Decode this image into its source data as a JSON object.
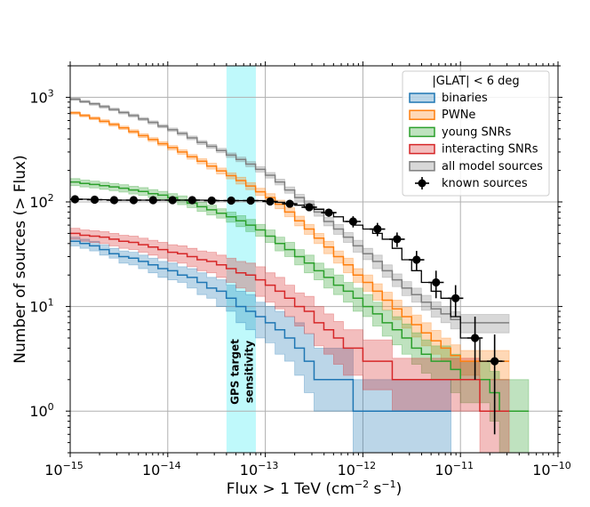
{
  "chart_data": {
    "type": "line",
    "xscale": "log",
    "yscale": "log",
    "xlabel": "Flux > 1 TeV (cm",
    "xlabel_parts": {
      "main": "Flux > 1 TeV (cm",
      "sup1": "−2",
      "mid": " s",
      "sup2": "−1",
      "end": ")"
    },
    "ylabel": "Number of sources (> Flux)",
    "xlim": [
      1e-15,
      1e-10
    ],
    "ylim": [
      0.4,
      2000
    ],
    "x_ticks": [
      {
        "value": 1e-15,
        "base": "10",
        "exp": "−15"
      },
      {
        "value": 1e-14,
        "base": "10",
        "exp": "−14"
      },
      {
        "value": 1e-13,
        "base": "10",
        "exp": "−13"
      },
      {
        "value": 1e-12,
        "base": "10",
        "exp": "−12"
      },
      {
        "value": 1e-11,
        "base": "10",
        "exp": "−11"
      },
      {
        "value": 1e-10,
        "base": "10",
        "exp": "−10"
      }
    ],
    "y_ticks": [
      {
        "value": 1,
        "base": "10",
        "exp": "0"
      },
      {
        "value": 10,
        "base": "10",
        "exp": "1"
      },
      {
        "value": 100,
        "base": "10",
        "exp": "2"
      },
      {
        "value": 1000,
        "base": "10",
        "exp": "3"
      }
    ],
    "grid": true,
    "legend_title": "|GLAT| < 6 deg",
    "legend_position": "upper right",
    "sensitivity_band": {
      "x_range": [
        4e-14,
        8e-14
      ],
      "label_line1": "GPS target",
      "label_line2": "sensitivity",
      "color": "#00e8f0"
    },
    "series": [
      {
        "name": "binaries",
        "color": "#1f77b4",
        "x": [
          1e-15,
          1.26e-15,
          1.58e-15,
          2e-15,
          2.51e-15,
          3.16e-15,
          3.98e-15,
          5.01e-15,
          6.31e-15,
          7.94e-15,
          1e-14,
          1.26e-14,
          1.58e-14,
          2e-14,
          2.51e-14,
          3.16e-14,
          3.98e-14,
          5.01e-14,
          6.31e-14,
          7.94e-14,
          1e-13,
          1.26e-13,
          1.58e-13,
          2e-13,
          2.51e-13,
          3.16e-13,
          3.98e-13,
          5.01e-13,
          6.31e-13,
          7.94e-13,
          1e-12,
          1.26e-12,
          1.58e-12,
          2e-12,
          2.51e-12,
          3.16e-12,
          3.98e-12,
          5.01e-12,
          6.31e-12
        ],
        "y": [
          42,
          40,
          38,
          35,
          32,
          30,
          29,
          27,
          25,
          23,
          22,
          20,
          19,
          17,
          15,
          14,
          12,
          10,
          9,
          8,
          7,
          6,
          5,
          4,
          3,
          2,
          2,
          2,
          2,
          1,
          1,
          1,
          1,
          1,
          1,
          1,
          1,
          1,
          1
        ],
        "low": [
          38,
          36,
          34,
          31,
          29,
          26,
          25,
          23,
          21,
          19,
          18,
          17,
          15,
          13,
          12,
          10,
          9,
          7,
          6,
          5,
          4.5,
          3.5,
          3,
          2.2,
          1.5,
          1,
          1,
          1,
          1,
          0.4,
          0.4,
          0.4,
          0.4,
          0.4,
          0.4,
          0.4,
          0.4,
          0.4,
          0.4
        ],
        "high": [
          46,
          44,
          42,
          39,
          36,
          34,
          33,
          31,
          29,
          27,
          26,
          24,
          23,
          21,
          19,
          18,
          16,
          14,
          13,
          11,
          10,
          9,
          8,
          7,
          5.5,
          4,
          4,
          4,
          4,
          2,
          2,
          2,
          2,
          2,
          2,
          2,
          2,
          2,
          2
        ],
        "x_end": 8e-12
      },
      {
        "name": "PWNe",
        "color": "#ff7f0e",
        "x": [
          1e-15,
          1.26e-15,
          1.58e-15,
          2e-15,
          2.51e-15,
          3.16e-15,
          3.98e-15,
          5.01e-15,
          6.31e-15,
          7.94e-15,
          1e-14,
          1.26e-14,
          1.58e-14,
          2e-14,
          2.51e-14,
          3.16e-14,
          3.98e-14,
          5.01e-14,
          6.31e-14,
          7.94e-14,
          1e-13,
          1.26e-13,
          1.58e-13,
          2e-13,
          2.51e-13,
          3.16e-13,
          3.98e-13,
          5.01e-13,
          6.31e-13,
          7.94e-13,
          1e-12,
          1.26e-12,
          1.58e-12,
          2e-12,
          2.51e-12,
          3.16e-12,
          3.98e-12,
          5.01e-12,
          6.31e-12,
          7.94e-12,
          1e-11,
          1.26e-11,
          1.58e-11,
          2e-11,
          2.51e-11
        ],
        "y": [
          710,
          670,
          630,
          590,
          550,
          510,
          470,
          430,
          395,
          360,
          330,
          300,
          270,
          245,
          220,
          198,
          178,
          160,
          142,
          125,
          110,
          95,
          80,
          66,
          55,
          45,
          37,
          30,
          25,
          20,
          17,
          14,
          11.5,
          9.5,
          8,
          6.7,
          5.6,
          4.7,
          4,
          3.4,
          3,
          3,
          3,
          3,
          3
        ],
        "low": [
          690,
          650,
          610,
          570,
          530,
          492,
          452,
          413,
          378,
          344,
          314,
          285,
          256,
          231,
          206,
          185,
          166,
          148,
          131,
          115,
          100,
          86,
          72,
          59,
          49,
          40,
          32,
          26,
          21,
          17,
          14,
          11.5,
          9.3,
          7.5,
          6.2,
          5.1,
          4.2,
          3.5,
          3,
          2.5,
          2.2,
          2.2,
          2,
          2,
          2
        ],
        "high": [
          730,
          690,
          650,
          610,
          570,
          530,
          490,
          448,
          412,
          377,
          346,
          315,
          284,
          259,
          234,
          211,
          190,
          172,
          153,
          135,
          120,
          104,
          88,
          73,
          61,
          50,
          42,
          34,
          29,
          23,
          20,
          16.5,
          13.7,
          11.5,
          9.8,
          8.3,
          7,
          5.9,
          5,
          4.3,
          3.8,
          3.8,
          3.8,
          3.8,
          3.8
        ],
        "x_end": 3.16e-11
      },
      {
        "name": "young SNRs",
        "color": "#2ca02c",
        "x": [
          1e-15,
          1.26e-15,
          1.58e-15,
          2e-15,
          2.51e-15,
          3.16e-15,
          3.98e-15,
          5.01e-15,
          6.31e-15,
          7.94e-15,
          1e-14,
          1.26e-14,
          1.58e-14,
          2e-14,
          2.51e-14,
          3.16e-14,
          3.98e-14,
          5.01e-14,
          6.31e-14,
          7.94e-14,
          1e-13,
          1.26e-13,
          1.58e-13,
          2e-13,
          2.51e-13,
          3.16e-13,
          3.98e-13,
          5.01e-13,
          6.31e-13,
          7.94e-13,
          1e-12,
          1.26e-12,
          1.58e-12,
          2e-12,
          2.51e-12,
          3.16e-12,
          3.98e-12,
          5.01e-12,
          6.31e-12,
          7.94e-12,
          1e-11,
          1.26e-11,
          1.58e-11,
          2e-11,
          2.51e-11,
          3.16e-11,
          3.98e-11
        ],
        "y": [
          155,
          150,
          147,
          143,
          139,
          135,
          130,
          126,
          120,
          116,
          110,
          104,
          97,
          90,
          84,
          78,
          72,
          66,
          60,
          54,
          47,
          40,
          35,
          30,
          26,
          22,
          19,
          16,
          14,
          12,
          10,
          8.5,
          7,
          6,
          5,
          4,
          3.5,
          3,
          3,
          2.5,
          2,
          2,
          2,
          1.5,
          1,
          1,
          1
        ],
        "low": [
          143,
          139,
          136,
          132,
          128,
          124,
          119,
          115,
          110,
          106,
          100,
          94,
          88,
          81,
          75,
          70,
          64,
          58,
          52,
          47,
          41,
          34,
          30,
          25,
          21,
          18,
          15,
          13,
          11,
          9,
          8,
          6.5,
          5.2,
          4.3,
          3.5,
          2.8,
          2.3,
          2,
          2,
          1.5,
          1.2,
          1.2,
          1.2,
          0.8,
          0.4,
          0.4,
          0.4
        ],
        "high": [
          167,
          162,
          158,
          154,
          150,
          146,
          141,
          137,
          131,
          126,
          120,
          114,
          106,
          99,
          93,
          86,
          80,
          74,
          68,
          61,
          54,
          46,
          41,
          35,
          31,
          26,
          23,
          20,
          17,
          15,
          13,
          11,
          9.2,
          8,
          6.8,
          5.6,
          4.8,
          4.2,
          4.2,
          3.5,
          3,
          3,
          3,
          2.4,
          2,
          2,
          2
        ],
        "x_end": 5e-11
      },
      {
        "name": "interacting SNRs",
        "color": "#d62728",
        "x": [
          1e-15,
          1.26e-15,
          1.58e-15,
          2e-15,
          2.51e-15,
          3.16e-15,
          3.98e-15,
          5.01e-15,
          6.31e-15,
          7.94e-15,
          1e-14,
          1.26e-14,
          1.58e-14,
          2e-14,
          2.51e-14,
          3.16e-14,
          3.98e-14,
          5.01e-14,
          6.31e-14,
          7.94e-14,
          1e-13,
          1.26e-13,
          1.58e-13,
          2e-13,
          2.51e-13,
          3.16e-13,
          3.98e-13,
          5.01e-13,
          6.31e-13,
          7.94e-13,
          1e-12,
          1.26e-12,
          1.58e-12,
          2e-12,
          2.51e-12,
          3.16e-12,
          3.98e-12,
          5.01e-12,
          6.31e-12,
          7.94e-12,
          1e-11,
          1.26e-11,
          1.58e-11,
          2e-11,
          2.51e-11
        ],
        "y": [
          50,
          48,
          47,
          46,
          44,
          42,
          41,
          39,
          37,
          35,
          33,
          32,
          30,
          28,
          27,
          25,
          23,
          21,
          20,
          18,
          16,
          14,
          12,
          10,
          9,
          7,
          6,
          5,
          4,
          4,
          3,
          3,
          3,
          2,
          2,
          2,
          2,
          2,
          2,
          2,
          2,
          2,
          1,
          1,
          1
        ],
        "low": [
          44,
          42,
          41,
          40,
          38,
          36,
          35,
          33,
          31,
          29,
          27,
          26,
          24,
          22,
          21,
          19,
          17,
          15,
          14,
          12.5,
          11,
          9.5,
          8,
          6.5,
          5.5,
          4.2,
          3.5,
          2.8,
          2.2,
          2.2,
          1.6,
          1.6,
          1.6,
          1,
          1,
          1,
          1,
          1,
          1,
          1,
          1,
          1,
          0.4,
          0.4,
          0.4
        ],
        "high": [
          56,
          54,
          53,
          52,
          50,
          48,
          47,
          45,
          43,
          41,
          39,
          38,
          36,
          34,
          33,
          31,
          29,
          27,
          26,
          24,
          21,
          19,
          16,
          13.5,
          12.5,
          10,
          8.5,
          7.2,
          6,
          6,
          4.8,
          4.8,
          4.8,
          3.2,
          3.2,
          3.2,
          3.2,
          3.2,
          3.2,
          3.2,
          3.2,
          3.2,
          2,
          2,
          2
        ],
        "x_end": 3.16e-11
      },
      {
        "name": "all model sources",
        "color": "#7f7f7f",
        "x": [
          1e-15,
          1.26e-15,
          1.58e-15,
          2e-15,
          2.51e-15,
          3.16e-15,
          3.98e-15,
          5.01e-15,
          6.31e-15,
          7.94e-15,
          1e-14,
          1.26e-14,
          1.58e-14,
          2e-14,
          2.51e-14,
          3.16e-14,
          3.98e-14,
          5.01e-14,
          6.31e-14,
          7.94e-14,
          1e-13,
          1.26e-13,
          1.58e-13,
          2e-13,
          2.51e-13,
          3.16e-13,
          3.98e-13,
          5.01e-13,
          6.31e-13,
          7.94e-13,
          1e-12,
          1.26e-12,
          1.58e-12,
          2e-12,
          2.51e-12,
          3.16e-12,
          3.98e-12,
          5.01e-12,
          6.31e-12,
          7.94e-12,
          1e-11,
          1.26e-11,
          1.58e-11,
          2e-11,
          2.51e-11
        ],
        "y": [
          960,
          910,
          865,
          815,
          765,
          715,
          670,
          620,
          575,
          530,
          490,
          450,
          410,
          370,
          340,
          310,
          280,
          255,
          230,
          205,
          180,
          155,
          130,
          110,
          95,
          80,
          65,
          55,
          46,
          38,
          32,
          27,
          22,
          18,
          15,
          13,
          11,
          9.5,
          8.5,
          7.5,
          7,
          7,
          7,
          7,
          7
        ],
        "low": [
          935,
          886,
          840,
          790,
          742,
          693,
          648,
          600,
          555,
          511,
          471,
          432,
          393,
          354,
          325,
          295,
          266,
          242,
          217,
          193,
          169,
          145,
          121,
          102,
          87,
          73,
          59,
          49,
          41,
          33,
          28,
          23,
          19,
          15.5,
          12.7,
          11,
          9.2,
          7.9,
          7,
          6.1,
          5.6,
          5.6,
          5.6,
          5.6,
          5.6
        ],
        "high": [
          985,
          934,
          890,
          840,
          788,
          737,
          692,
          640,
          595,
          549,
          509,
          468,
          427,
          386,
          355,
          325,
          294,
          268,
          243,
          217,
          191,
          165,
          139,
          118,
          103,
          87,
          71,
          61,
          51,
          43,
          36,
          31,
          25,
          20.5,
          17.3,
          15,
          12.8,
          11.1,
          10,
          8.9,
          8.4,
          8.4,
          8.4,
          8.4,
          8.4
        ],
        "x_end": 3.16e-11
      }
    ],
    "known_sources": {
      "name": "known sources",
      "color": "#000000",
      "points": [
        {
          "x": 1.12e-15,
          "y": 106,
          "yerr": 5
        },
        {
          "x": 1.78e-15,
          "y": 105,
          "yerr": 5
        },
        {
          "x": 2.82e-15,
          "y": 104,
          "yerr": 5
        },
        {
          "x": 4.47e-15,
          "y": 104,
          "yerr": 5
        },
        {
          "x": 7.08e-15,
          "y": 104,
          "yerr": 5
        },
        {
          "x": 1.12e-14,
          "y": 104,
          "yerr": 5
        },
        {
          "x": 1.78e-14,
          "y": 104,
          "yerr": 5
        },
        {
          "x": 2.82e-14,
          "y": 103,
          "yerr": 5
        },
        {
          "x": 4.47e-14,
          "y": 103,
          "yerr": 5
        },
        {
          "x": 7.08e-14,
          "y": 103,
          "yerr": 5
        },
        {
          "x": 1.12e-13,
          "y": 101,
          "yerr": 5
        },
        {
          "x": 1.78e-13,
          "y": 96,
          "yerr": 5
        },
        {
          "x": 2.82e-13,
          "y": 89,
          "yerr": 6
        },
        {
          "x": 4.47e-13,
          "y": 79,
          "yerr": 7
        },
        {
          "x": 7.94e-13,
          "y": 65,
          "yerr": 8
        },
        {
          "x": 1.41e-12,
          "y": 55,
          "yerr": 8
        },
        {
          "x": 2.24e-12,
          "y": 44,
          "yerr": 7
        },
        {
          "x": 3.55e-12,
          "y": 28,
          "yerr": 6
        },
        {
          "x": 5.62e-12,
          "y": 17,
          "yerr": 5
        },
        {
          "x": 8.91e-12,
          "y": 12,
          "yerr": 4
        },
        {
          "x": 1.41e-11,
          "y": 5,
          "yerr": 3
        },
        {
          "x": 2.24e-11,
          "y": 3,
          "yerr": 2.4
        }
      ],
      "line_x": [
        1e-15,
        1.26e-15,
        1.58e-15,
        2e-15,
        2.51e-15,
        3.16e-15,
        3.98e-15,
        5.01e-15,
        6.31e-15,
        7.94e-15,
        1e-14,
        1.26e-14,
        1.58e-14,
        2e-14,
        2.51e-14,
        3.16e-14,
        3.98e-14,
        5.01e-14,
        6.31e-14,
        7.94e-14,
        1e-13,
        1.26e-13,
        1.58e-13,
        2e-13,
        2.51e-13,
        3.16e-13,
        3.98e-13,
        5.01e-13,
        6.31e-13,
        7.94e-13,
        1e-12,
        1.26e-12,
        1.58e-12,
        2e-12,
        2.51e-12,
        3.16e-12,
        3.98e-12,
        5.01e-12,
        6.31e-12,
        7.94e-12,
        1e-11,
        1.26e-11,
        1.58e-11,
        2e-11,
        2.51e-11
      ],
      "line_y": [
        106,
        106,
        105,
        105,
        104,
        104,
        104,
        104,
        104,
        104,
        104,
        104,
        104,
        104,
        104,
        103,
        103,
        103,
        103,
        103,
        101,
        99,
        96,
        93,
        89,
        85,
        79,
        72,
        65,
        60,
        55,
        50,
        44,
        36,
        28,
        22,
        17,
        14,
        12,
        8,
        5,
        5,
        3,
        3,
        3
      ],
      "x_end": 2.82e-11
    }
  }
}
